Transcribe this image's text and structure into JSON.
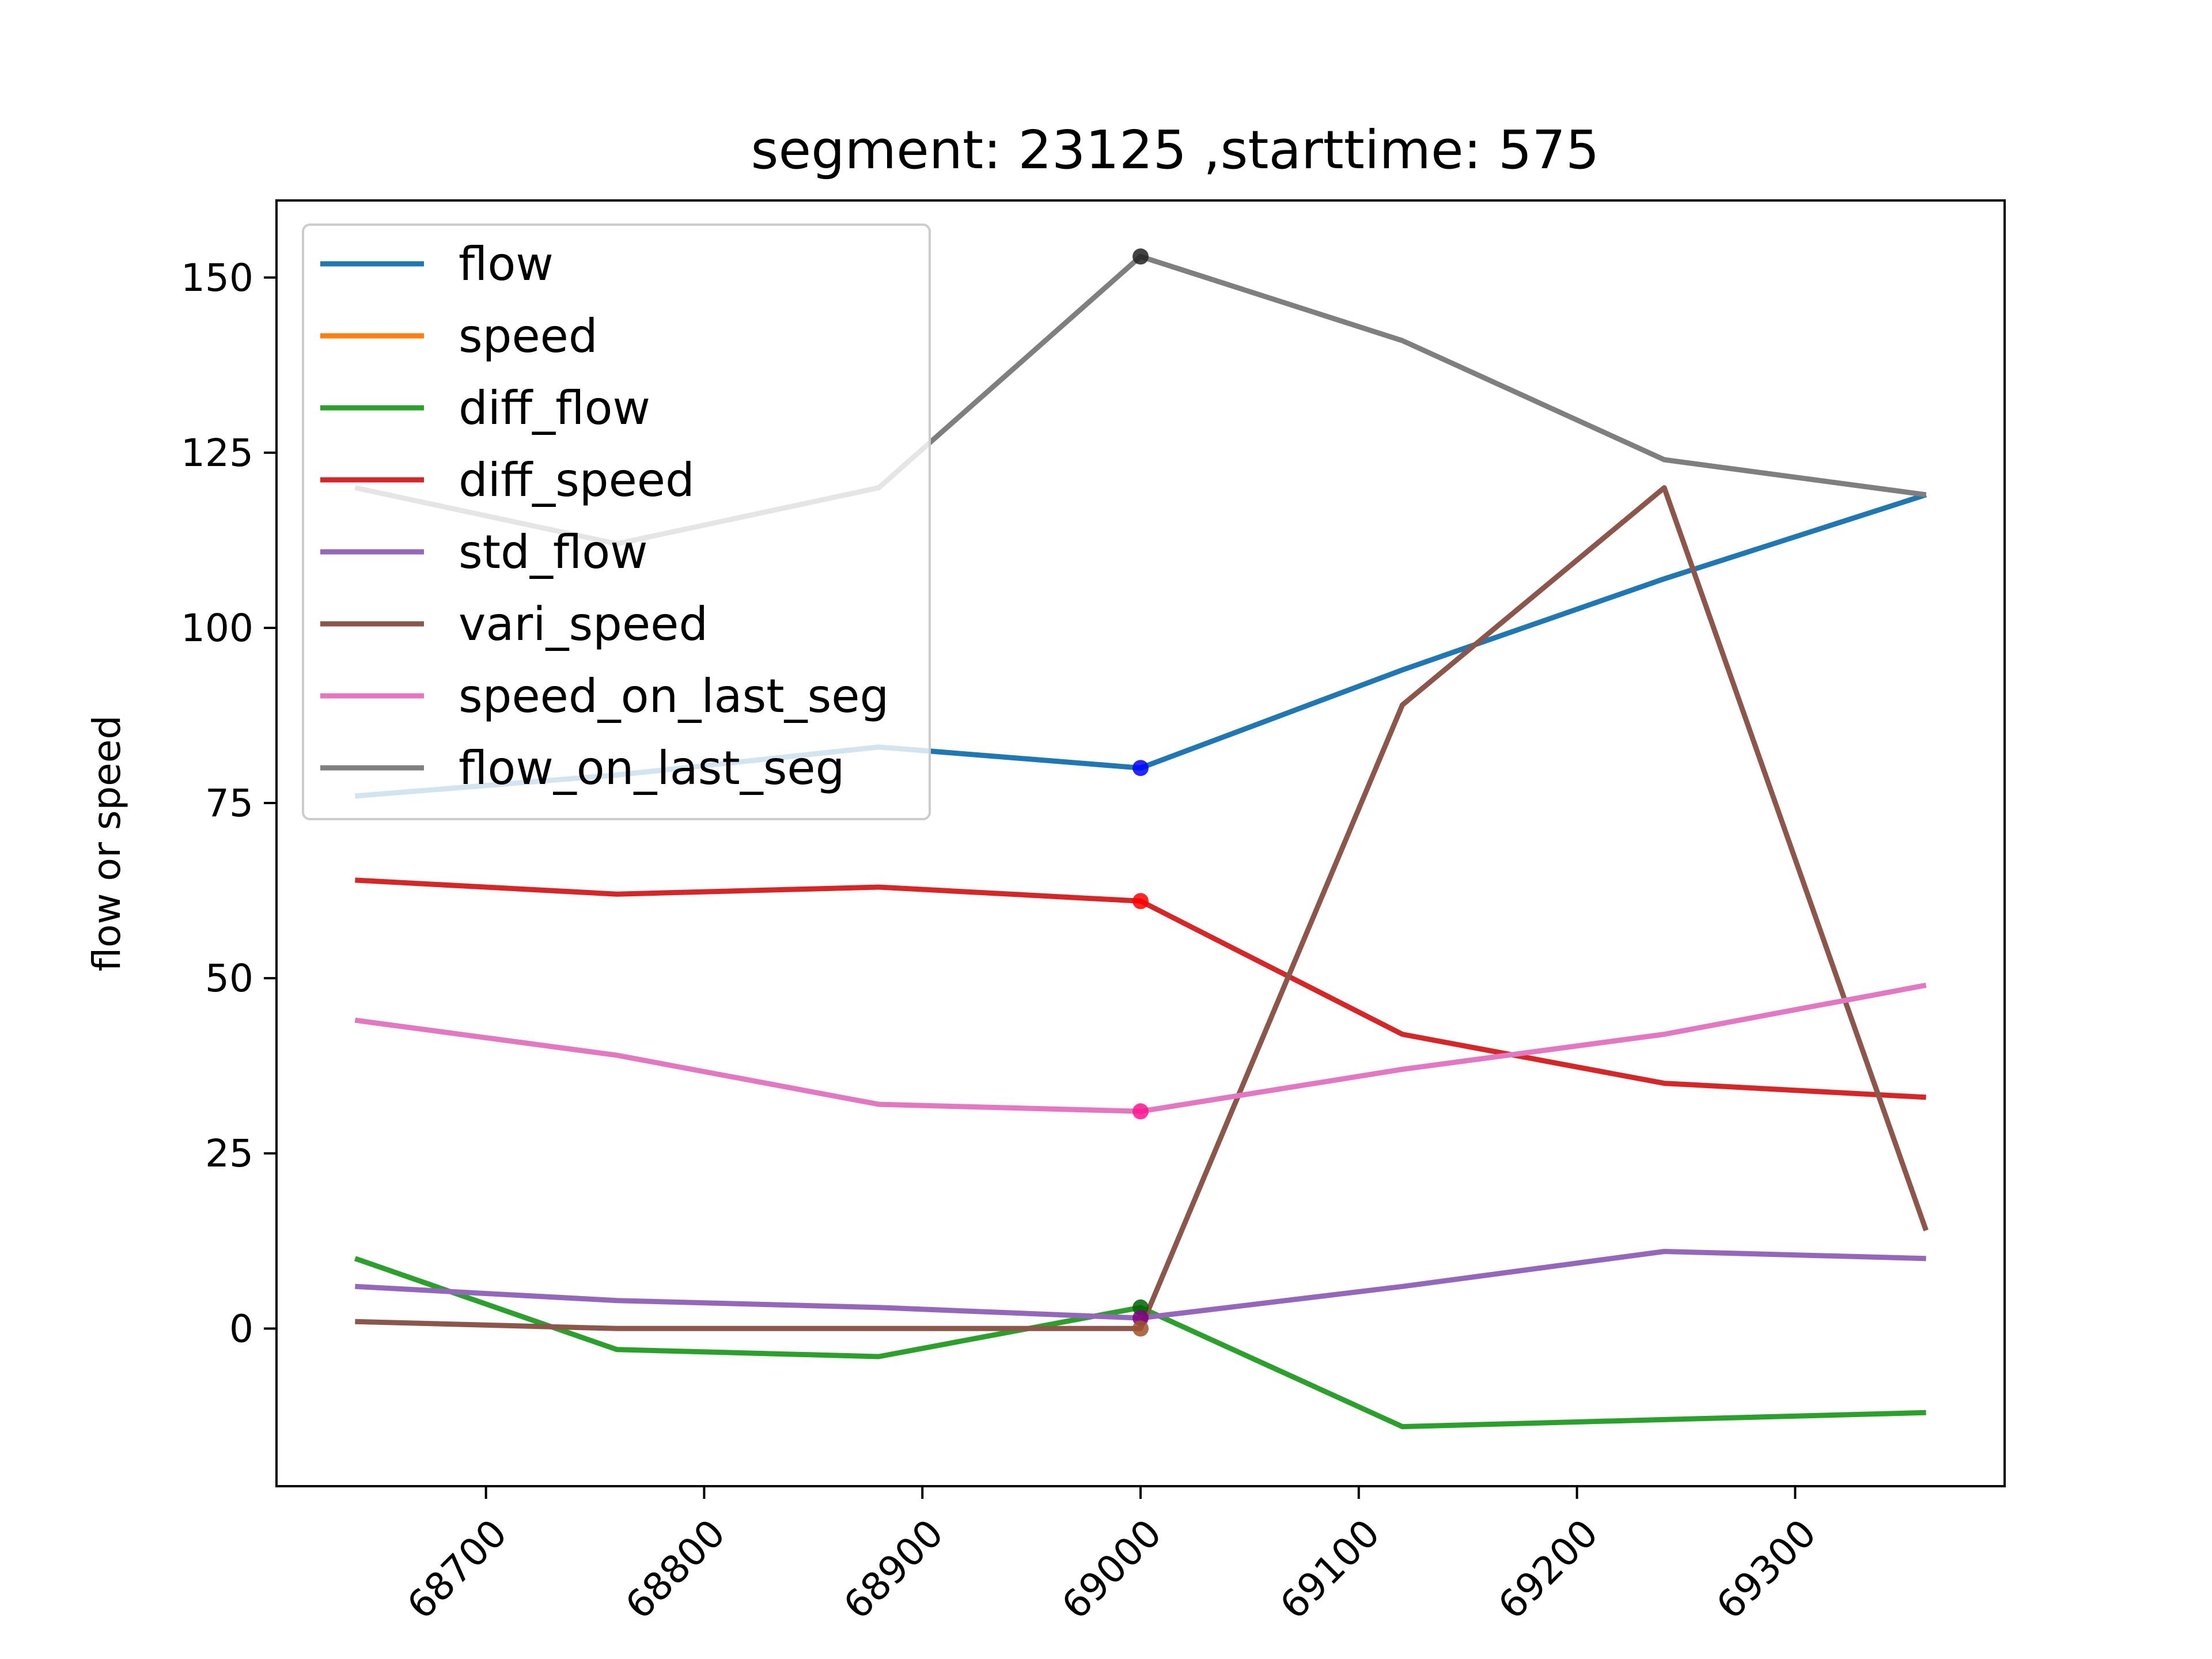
{
  "chart_data": {
    "type": "line",
    "title": "segment: 23125 ,starttime: 575",
    "xlabel": "",
    "ylabel": "flow or speed",
    "x": [
      68640,
      68760,
      68880,
      69000,
      69120,
      69240,
      69360
    ],
    "xticks": [
      68700,
      68800,
      68900,
      69000,
      69100,
      69200,
      69300
    ],
    "yticks": [
      0,
      25,
      50,
      75,
      100,
      125,
      150
    ],
    "xlim": [
      68604,
      69396
    ],
    "ylim": [
      -22.5,
      161
    ],
    "grid": false,
    "legend_position": "upper-left",
    "series": [
      {
        "name": "flow",
        "color": "#1f77b4",
        "values": [
          76,
          79,
          83,
          80,
          94,
          107,
          119
        ]
      },
      {
        "name": "speed",
        "color": "#ff7f0e",
        "values": [
          null,
          null,
          null,
          null,
          null,
          null,
          null
        ]
      },
      {
        "name": "diff_flow",
        "color": "#2ca02c",
        "values": [
          10,
          -3,
          -4,
          3,
          -14,
          -13,
          -12
        ]
      },
      {
        "name": "diff_speed",
        "color": "#d62728",
        "values": [
          64,
          62,
          63,
          61,
          42,
          35,
          33
        ]
      },
      {
        "name": "std_flow",
        "color": "#9467bd",
        "values": [
          6,
          4,
          3,
          1.5,
          6,
          11,
          10
        ]
      },
      {
        "name": "vari_speed",
        "color": "#8c564b",
        "values": [
          1,
          0,
          0,
          0,
          89,
          120,
          14
        ]
      },
      {
        "name": "speed_on_last_seg",
        "color": "#e377c2",
        "values": [
          44,
          39,
          32,
          31,
          37,
          42,
          49
        ]
      },
      {
        "name": "flow_on_last_seg",
        "color": "#7f7f7f",
        "values": [
          120,
          112,
          120,
          153,
          141,
          124,
          119
        ]
      }
    ],
    "highlight": {
      "x": 69000,
      "markers": [
        {
          "series": "flow_on_last_seg",
          "color": "#222222"
        },
        {
          "series": "flow",
          "color": "#0000ff"
        },
        {
          "series": "diff_speed",
          "color": "#ff0000"
        },
        {
          "series": "speed_on_last_seg",
          "color": "#ff1493"
        },
        {
          "series": "diff_flow",
          "color": "#006400"
        },
        {
          "series": "std_flow",
          "color": "#800080"
        },
        {
          "series": "vari_speed",
          "color": "#a0522d"
        }
      ]
    }
  }
}
